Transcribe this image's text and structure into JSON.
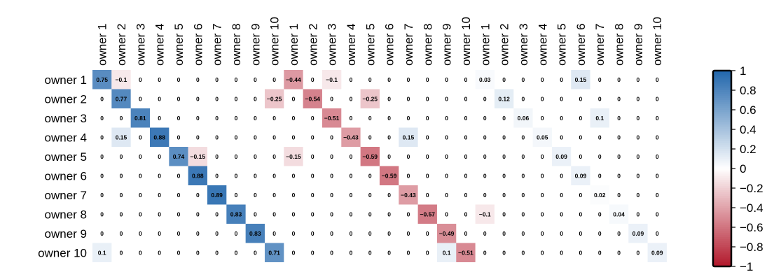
{
  "chart_data": {
    "type": "heatmap",
    "title": "",
    "rows": [
      "owner 1",
      "owner 2",
      "owner 3",
      "owner 4",
      "owner 5",
      "owner 6",
      "owner 7",
      "owner 8",
      "owner 9",
      "owner 10"
    ],
    "columns": [
      "owner 1",
      "owner 2",
      "owner 3",
      "owner 4",
      "owner 5",
      "owner 6",
      "owner 7",
      "owner 8",
      "owner 9",
      "owner 10",
      "owner 1",
      "owner 2",
      "owner 3",
      "owner 4",
      "owner 5",
      "owner 6",
      "owner 7",
      "owner 8",
      "owner 9",
      "owner 10",
      "owner 1",
      "owner 2",
      "owner 3",
      "owner 4",
      "owner 5",
      "owner 6",
      "owner 7",
      "owner 8",
      "owner 9",
      "owner 10"
    ],
    "values": [
      [
        0.75,
        -0.1,
        0,
        0,
        0,
        0,
        0,
        0,
        0,
        0,
        -0.44,
        0,
        -0.1,
        0,
        0,
        0,
        0,
        0,
        0,
        0,
        0.03,
        0,
        0,
        0,
        0,
        0.15,
        0,
        0,
        0,
        0
      ],
      [
        0,
        0.77,
        0,
        0,
        0,
        0,
        0,
        0,
        0,
        -0.25,
        0,
        -0.54,
        0,
        0,
        -0.25,
        0,
        0,
        0,
        0,
        0,
        0,
        0.12,
        0,
        0,
        0,
        0,
        0,
        0,
        0,
        0
      ],
      [
        0,
        0,
        0.81,
        0,
        0,
        0,
        0,
        0,
        0,
        0,
        0,
        0,
        -0.51,
        0,
        0,
        0,
        0,
        0,
        0,
        0,
        0,
        0,
        0.06,
        0,
        0,
        0,
        0.1,
        0,
        0,
        0
      ],
      [
        0,
        0.15,
        0,
        0.88,
        0,
        0,
        0,
        0,
        0,
        0,
        0,
        0,
        0,
        -0.43,
        0,
        0,
        0.15,
        0,
        0,
        0,
        0,
        0,
        0,
        0.05,
        0,
        0,
        0,
        0,
        0,
        0
      ],
      [
        0,
        0,
        0,
        0,
        0.74,
        -0.15,
        0,
        0,
        0,
        0,
        -0.15,
        0,
        0,
        0,
        -0.59,
        0,
        0,
        0,
        0,
        0,
        0,
        0,
        0,
        0,
        0.09,
        0,
        0,
        0,
        0,
        0
      ],
      [
        0,
        0,
        0,
        0,
        0,
        0.88,
        0,
        0,
        0,
        0,
        0,
        0,
        0,
        0,
        0,
        -0.59,
        0,
        0,
        0,
        0,
        0,
        0,
        0,
        0,
        0,
        0.09,
        0,
        0,
        0,
        0
      ],
      [
        0,
        0,
        0,
        0,
        0,
        0,
        0.89,
        0,
        0,
        0,
        0,
        0,
        0,
        0,
        0,
        0,
        -0.43,
        0,
        0,
        0,
        0,
        0,
        0,
        0,
        0,
        0,
        0.02,
        0,
        0,
        0
      ],
      [
        0,
        0,
        0,
        0,
        0,
        0,
        0,
        0.83,
        0,
        0,
        0,
        0,
        0,
        0,
        0,
        0,
        0,
        -0.57,
        0,
        0,
        -0.1,
        0,
        0,
        0,
        0,
        0,
        0,
        0.04,
        0,
        0
      ],
      [
        0,
        0,
        0,
        0,
        0,
        0,
        0,
        0,
        0.83,
        0,
        0,
        0,
        0,
        0,
        0,
        0,
        0,
        0,
        -0.49,
        0,
        0,
        0,
        0,
        0,
        0,
        0,
        0,
        0,
        0.09,
        0
      ],
      [
        0.1,
        0,
        0,
        0,
        0,
        0,
        0,
        0,
        0,
        0.71,
        0,
        0,
        0,
        0,
        0,
        0,
        0,
        0,
        0.1,
        -0.51,
        0,
        0,
        0,
        0,
        0,
        0,
        0,
        0,
        0,
        0.09
      ]
    ],
    "colorbar": {
      "ticks": [
        "1",
        "0.8",
        "0.6",
        "0.4",
        "0.2",
        "0",
        "−0.2",
        "−0.4",
        "−0.6",
        "−0.8",
        "−1"
      ],
      "range": [
        -1,
        1
      ],
      "colors": {
        "negative": "#b2182b",
        "mid": "#ffffff",
        "positive": "#2166ac"
      }
    },
    "xlabel": "",
    "ylabel": "",
    "grid": false
  }
}
